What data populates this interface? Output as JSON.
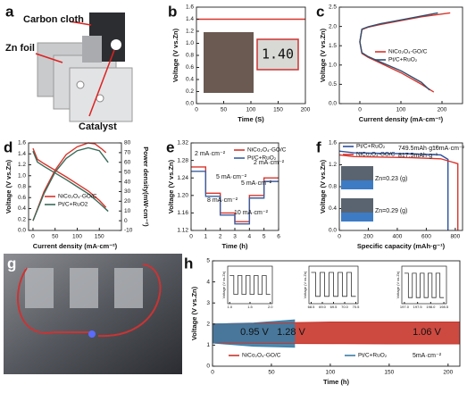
{
  "figure": {
    "photo_a": {
      "panel_label": "a",
      "labels": [
        "Carbon cloth",
        "Zn foil",
        "Catalyst"
      ]
    },
    "photo_g": {
      "panel_label": "g"
    }
  },
  "chart_data": [
    {
      "type": "line",
      "panel_label": "b",
      "xlabel": "Time (S)",
      "ylabel": "Voltage (V vs.Zn)",
      "inset_display": "1.40",
      "xlim": [
        0,
        200
      ],
      "xticks": [
        0,
        50,
        100,
        150,
        200
      ],
      "ylim": [
        0,
        1.6
      ],
      "yticks": [
        {
          "value": 0,
          "label": "0.0"
        },
        0.2,
        0.4,
        0.6,
        0.8,
        {
          "value": 1,
          "label": "1.0"
        },
        1.2,
        1.4,
        1.6
      ],
      "series": [
        {
          "name": "NiCo₂O₄-GO/C",
          "color": "#d9342b",
          "x": [
            0,
            200
          ],
          "values": [
            1.4,
            1.4
          ]
        }
      ]
    },
    {
      "type": "line",
      "panel_label": "c",
      "xlabel": "Current density (mA·cm⁻²)",
      "ylabel": "Voltage (V vs.Zn)",
      "xlim": [
        -50,
        250
      ],
      "xticks": [
        0,
        100,
        200
      ],
      "ylim": [
        0,
        2.5
      ],
      "yticks": [
        {
          "value": 0,
          "label": "0.0"
        },
        0.5,
        {
          "value": 1,
          "label": "1.0"
        },
        1.5,
        {
          "value": 2,
          "label": "2.0"
        },
        2.5
      ],
      "series": [
        {
          "name": "NiCo₂O₄-GO/C",
          "color": "#d9342b",
          "x": [
            220,
            150,
            100,
            50,
            20,
            5,
            0,
            5,
            20,
            50,
            100,
            150,
            180
          ],
          "values": [
            2.35,
            2.25,
            2.15,
            2.05,
            1.98,
            1.92,
            1.6,
            1.3,
            1.2,
            1.05,
            0.8,
            0.5,
            0.3
          ]
        },
        {
          "name": "Pt/C+RuO₂",
          "color": "#2f4f6f",
          "x": [
            190,
            140,
            100,
            50,
            20,
            5,
            0,
            5,
            20,
            50,
            100,
            150,
            170
          ],
          "values": [
            2.35,
            2.25,
            2.17,
            2.07,
            1.99,
            1.93,
            1.6,
            1.32,
            1.22,
            1.08,
            0.85,
            0.55,
            0.35
          ]
        }
      ]
    },
    {
      "type": "line",
      "panel_label": "d",
      "xlabel": "Current density (mA·cm⁻²)",
      "ylabel": "Voltage (V vs.Zn)",
      "y2label": "Power density(mW·cm⁻²)",
      "xlim": [
        -10,
        200
      ],
      "xticks": [
        0,
        50,
        100,
        150
      ],
      "ylim": [
        0,
        1.6
      ],
      "yticks": [
        {
          "value": 0,
          "label": "0.0"
        },
        0.2,
        0.4,
        0.6,
        0.8,
        {
          "value": 1,
          "label": "1.0"
        },
        1.2,
        1.4,
        1.6
      ],
      "y2lim": [
        -10,
        80
      ],
      "y2ticks": [
        -10,
        0,
        10,
        20,
        30,
        40,
        50,
        60,
        70,
        80
      ],
      "series": [
        {
          "name": "NiCo₂O₄-GO/C",
          "color": "#d9342b",
          "x": [
            0,
            10,
            25,
            50,
            75,
            100,
            125,
            150,
            165
          ],
          "values": [
            1.5,
            1.3,
            1.22,
            1.1,
            0.98,
            0.85,
            0.72,
            0.55,
            0.42
          ]
        },
        {
          "name": "Pt/C+RuO2",
          "color": "#3a6b5a",
          "x": [
            0,
            10,
            25,
            50,
            75,
            100,
            125,
            150,
            170
          ],
          "values": [
            1.45,
            1.25,
            1.17,
            1.05,
            0.93,
            0.8,
            0.67,
            0.5,
            0.35
          ]
        },
        {
          "color": "#d9342b",
          "axis": "y2",
          "x": [
            0,
            25,
            50,
            75,
            100,
            125,
            140,
            155,
            165
          ],
          "values": [
            0,
            30,
            52,
            68,
            76,
            80,
            79,
            74,
            70
          ]
        },
        {
          "color": "#3a6b5a",
          "axis": "y2",
          "x": [
            0,
            25,
            50,
            75,
            100,
            125,
            150,
            170
          ],
          "values": [
            0,
            28,
            50,
            64,
            72,
            75,
            72,
            60
          ]
        }
      ]
    },
    {
      "type": "line",
      "panel_label": "e",
      "xlabel": "Time (h)",
      "ylabel": "Voltage (V vs.Zn)",
      "xlim": [
        0,
        6
      ],
      "xticks": [
        0,
        1,
        2,
        3,
        4,
        5,
        6
      ],
      "ylim": [
        1.12,
        1.32
      ],
      "yticks": [
        1.12,
        1.16,
        {
          "value": 1.2,
          "label": "1.20"
        },
        1.24,
        1.28,
        1.32
      ],
      "annotations": [
        "2 mA·cm⁻²",
        "5 mA·cm⁻²",
        "8 mA·cm⁻²",
        "10 mA·cm⁻²",
        "5 mA·cm⁻²",
        "2 mA·cm⁻²"
      ],
      "series": [
        {
          "name": "NiCo₂O₄-GO/C",
          "color": "#d9342b",
          "x": [
            0,
            1,
            1,
            2,
            2,
            3,
            3,
            4,
            4,
            5,
            5,
            6
          ],
          "values": [
            1.265,
            1.265,
            1.205,
            1.205,
            1.16,
            1.16,
            1.14,
            1.14,
            1.2,
            1.2,
            1.24,
            1.24
          ]
        },
        {
          "name": "Pt/C+RuO₂",
          "color": "#3a5fa0",
          "x": [
            0,
            1,
            1,
            2,
            2,
            3,
            3,
            4,
            4,
            5,
            5,
            6
          ],
          "values": [
            1.255,
            1.255,
            1.198,
            1.198,
            1.155,
            1.155,
            1.135,
            1.135,
            1.194,
            1.194,
            1.232,
            1.232
          ]
        }
      ]
    },
    {
      "type": "line",
      "panel_label": "f",
      "xlabel": "Specific capacity (mAh·g⁻¹)",
      "ylabel": "Voltage (V vs.Zn)",
      "xlim": [
        0,
        850
      ],
      "xticks": [
        0,
        200,
        400,
        600,
        800
      ],
      "ylim": [
        0,
        1.6
      ],
      "yticks": [
        {
          "value": 0,
          "label": "0.0"
        },
        0.4,
        0.8,
        1.2,
        1.6
      ],
      "annotations": [
        "749.5mAh·g⁻¹",
        "10mA·cm⁻²",
        "817.5mAh·g⁻¹",
        "Zn=0.23 (g)",
        "Zn=0.29 (g)"
      ],
      "series": [
        {
          "name": "Pt/C+RuO₂",
          "color": "#2b4fa0",
          "x": [
            0,
            100,
            300,
            500,
            700,
            749.5,
            749.5
          ],
          "values": [
            1.45,
            1.42,
            1.41,
            1.4,
            1.38,
            1.3,
            0
          ]
        },
        {
          "name": "NiCo₂O₄-GO/C",
          "color": "#d9342b",
          "x": [
            0,
            100,
            300,
            500,
            700,
            817.5,
            817.5
          ],
          "values": [
            1.38,
            1.35,
            1.34,
            1.33,
            1.31,
            1.22,
            0
          ]
        }
      ]
    },
    {
      "type": "band",
      "panel_label": "h",
      "xlabel": "Time (h)",
      "ylabel": "Voltage (V vs.Zn)",
      "xlim": [
        0,
        210
      ],
      "xticks": [
        0,
        50,
        100,
        150,
        200
      ],
      "ylim": [
        0,
        5
      ],
      "yticks": [
        0,
        1,
        2,
        3,
        4,
        5
      ],
      "annotations": [
        "0.95 V",
        "1.28 V",
        "1.06 V",
        "5mA·cm⁻²"
      ],
      "series": [
        {
          "name": "NiCo₂O₄-GO/C",
          "color": "#c8362c",
          "x": [
            0,
            50,
            100,
            150,
            200,
            210
          ],
          "values": [
            1.1,
            1.08,
            1.07,
            1.06,
            1.06,
            1.06
          ],
          "upper": [
            2,
            2.05,
            2.1,
            2.1,
            2.1,
            2.1
          ]
        },
        {
          "name": "Pt/C+RuO₂",
          "color": "#3a7ca5",
          "x": [
            0,
            35,
            70
          ],
          "values": [
            1.1,
            0.95,
            0.9
          ],
          "upper": [
            2,
            2.05,
            2.2
          ]
        }
      ],
      "insets": [
        {
          "ylabel": "Voltage (V vs.Zn)",
          "xlim": [
            0.95,
            2.05
          ],
          "ylim": [
            0.8,
            2.4
          ],
          "xticks": [
            {
              "value": 1,
              "label": "1.0"
            },
            1.5,
            {
              "value": 2,
              "label": "2.0"
            }
          ],
          "x": [
            1.0,
            1.1,
            1.1,
            1.2,
            1.2,
            1.3,
            1.3,
            1.4,
            1.4,
            1.5,
            1.5,
            1.6,
            1.6,
            1.7,
            1.7,
            1.8,
            1.8,
            1.9,
            1.9,
            2.0
          ],
          "values": [
            2,
            2,
            1.2,
            1.2,
            2,
            2,
            1.2,
            1.2,
            2,
            2,
            1.2,
            1.2,
            2,
            2,
            1.2,
            1.2,
            2,
            2,
            1.2,
            1.2
          ]
        },
        {
          "ylabel": "Voltage (V vs.Zn)",
          "xlim": [
            68.4,
            70.6
          ],
          "ylim": [
            0.6,
            2.4
          ],
          "xticks": [
            68.5,
            {
              "value": 69,
              "label": "69.0"
            },
            69.5,
            {
              "value": 70,
              "label": "70.0"
            },
            70.5
          ],
          "x": [
            68.5,
            68.7,
            68.7,
            68.9,
            68.9,
            69.1,
            69.1,
            69.3,
            69.3,
            69.5,
            69.5,
            69.7,
            69.7,
            69.9,
            69.9,
            70.1,
            70.1,
            70.3,
            70.3,
            70.5
          ],
          "values": [
            2.1,
            2.1,
            0.95,
            0.95,
            2.1,
            2.1,
            0.95,
            0.95,
            2.1,
            2.1,
            0.95,
            0.95,
            2.1,
            2.1,
            0.95,
            0.95,
            2.1,
            2.1,
            0.95,
            0.95
          ]
        },
        {
          "ylabel": "Voltage (V vs.Zn)",
          "xlim": [
            196.9,
            198.6
          ],
          "ylim": [
            0.8,
            2.4
          ],
          "xticks": [
            {
              "value": 197,
              "label": "197.0"
            },
            197.5,
            {
              "value": 198,
              "label": "198.0"
            },
            198.5
          ],
          "x": [
            197.0,
            197.15,
            197.15,
            197.3,
            197.3,
            197.45,
            197.45,
            197.6,
            197.6,
            197.75,
            197.75,
            197.9,
            197.9,
            198.05,
            198.05,
            198.2,
            198.2,
            198.35,
            198.35,
            198.5
          ],
          "values": [
            2.1,
            2.1,
            1.06,
            1.06,
            2.1,
            2.1,
            1.06,
            1.06,
            2.1,
            2.1,
            1.06,
            1.06,
            2.1,
            2.1,
            1.06,
            1.06,
            2.1,
            2.1,
            1.06,
            1.06
          ]
        }
      ]
    }
  ]
}
